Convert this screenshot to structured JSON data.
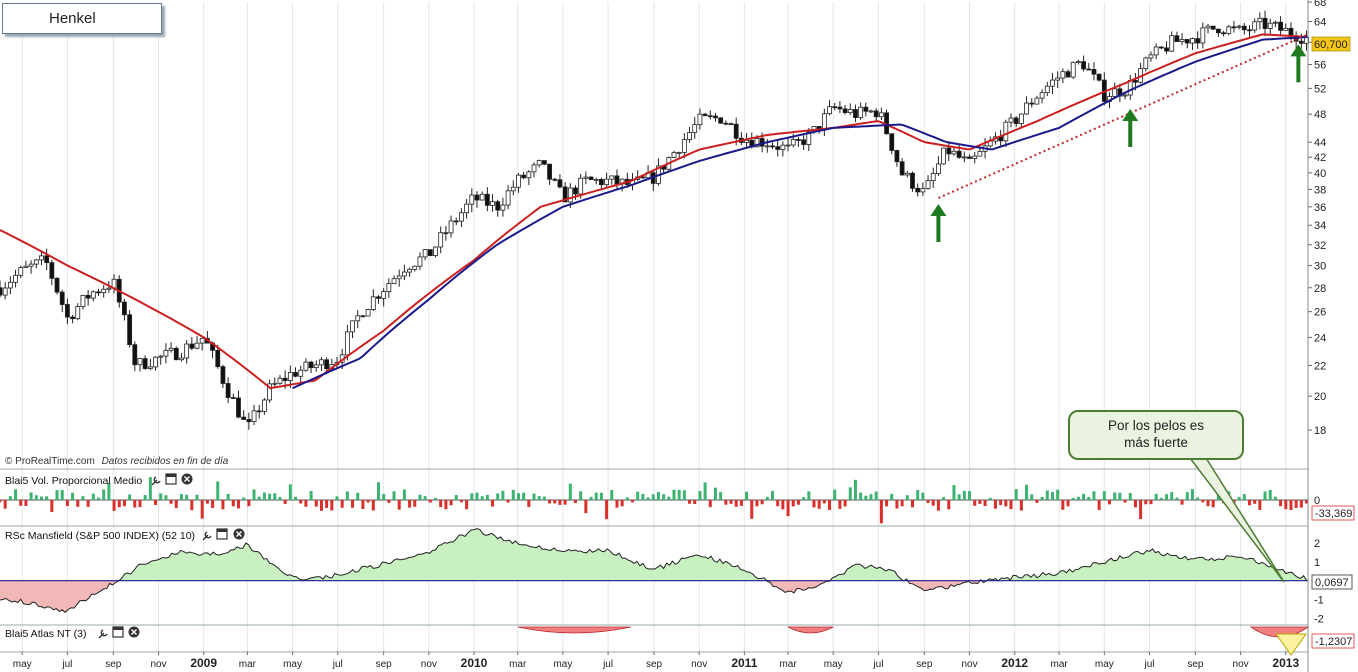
{
  "title": "Henkel",
  "credit": {
    "source": "© ProRealTime.com",
    "note": "Datos recibidos en fin de día"
  },
  "callout": {
    "line1": "Por los pelos es",
    "line2": "más fuerte"
  },
  "colors": {
    "up_candle": "#ffffff",
    "down_candle": "#111111",
    "ma_fast": "#cc1f1f",
    "ma_slow": "#1a1a8c",
    "trendline": "#c0282d",
    "arrow": "#1e7a1e",
    "vol_up": "#3cb371",
    "vol_down": "#d9302c",
    "rs_pos": "#c8f0c0",
    "rs_neg": "#f2b8b8",
    "price_badge": "#f5c518"
  },
  "chart_data": [
    {
      "type": "candlestick",
      "panel": "price",
      "title": "Henkel",
      "y_ticks": [
        18,
        20,
        22,
        24,
        26,
        28,
        30,
        32,
        34,
        36,
        38,
        40,
        42,
        44,
        48,
        52,
        56,
        60,
        64,
        68
      ],
      "ylim": [
        16,
        68
      ],
      "y_scale": "log",
      "last_price_label": "60,700",
      "x_ticks": [
        {
          "label": "may",
          "date": "2008-05"
        },
        {
          "label": "jul",
          "date": "2008-07"
        },
        {
          "label": "sep",
          "date": "2008-09"
        },
        {
          "label": "nov",
          "date": "2008-11"
        },
        {
          "label": "2009",
          "date": "2009-01",
          "year": true
        },
        {
          "label": "mar",
          "date": "2009-03"
        },
        {
          "label": "may",
          "date": "2009-05"
        },
        {
          "label": "jul",
          "date": "2009-07"
        },
        {
          "label": "sep",
          "date": "2009-09"
        },
        {
          "label": "nov",
          "date": "2009-11"
        },
        {
          "label": "2010",
          "date": "2010-01",
          "year": true
        },
        {
          "label": "mar",
          "date": "2010-03"
        },
        {
          "label": "may",
          "date": "2010-05"
        },
        {
          "label": "jul",
          "date": "2010-07"
        },
        {
          "label": "sep",
          "date": "2010-09"
        },
        {
          "label": "nov",
          "date": "2010-11"
        },
        {
          "label": "2011",
          "date": "2011-01",
          "year": true
        },
        {
          "label": "mar",
          "date": "2011-03"
        },
        {
          "label": "may",
          "date": "2011-05"
        },
        {
          "label": "jul",
          "date": "2011-07"
        },
        {
          "label": "sep",
          "date": "2011-09"
        },
        {
          "label": "nov",
          "date": "2011-11"
        },
        {
          "label": "2012",
          "date": "2012-01",
          "year": true
        },
        {
          "label": "mar",
          "date": "2012-03"
        },
        {
          "label": "may",
          "date": "2012-05"
        },
        {
          "label": "jul",
          "date": "2012-07"
        },
        {
          "label": "sep",
          "date": "2012-09"
        },
        {
          "label": "nov",
          "date": "2012-11"
        },
        {
          "label": "2013",
          "date": "2013-01",
          "year": true
        }
      ],
      "xlim": [
        "2008-04-01",
        "2013-01-31"
      ],
      "close_path": [
        [
          "2008-04-01",
          28.0
        ],
        [
          "2008-05-01",
          29.5
        ],
        [
          "2008-06-01",
          30.5
        ],
        [
          "2008-07-01",
          25.5
        ],
        [
          "2008-08-01",
          27.5
        ],
        [
          "2008-09-01",
          28.5
        ],
        [
          "2008-10-01",
          22.0
        ],
        [
          "2008-11-01",
          22.5
        ],
        [
          "2008-12-01",
          23.0
        ],
        [
          "2009-01-01",
          24.0
        ],
        [
          "2009-02-01",
          20.5
        ],
        [
          "2009-03-01",
          18.0
        ],
        [
          "2009-04-01",
          20.5
        ],
        [
          "2009-05-01",
          21.5
        ],
        [
          "2009-06-01",
          22.0
        ],
        [
          "2009-07-01",
          22.5
        ],
        [
          "2009-08-01",
          26.0
        ],
        [
          "2009-09-01",
          28.0
        ],
        [
          "2009-10-01",
          30.0
        ],
        [
          "2009-11-01",
          31.0
        ],
        [
          "2009-12-01",
          34.0
        ],
        [
          "2010-01-01",
          37.0
        ],
        [
          "2010-02-01",
          36.0
        ],
        [
          "2010-03-01",
          39.0
        ],
        [
          "2010-04-01",
          41.0
        ],
        [
          "2010-05-01",
          37.0
        ],
        [
          "2010-06-01",
          39.0
        ],
        [
          "2010-07-01",
          39.0
        ],
        [
          "2010-08-01",
          38.5
        ],
        [
          "2010-09-01",
          39.5
        ],
        [
          "2010-10-01",
          43.0
        ],
        [
          "2010-11-01",
          47.0
        ],
        [
          "2010-12-01",
          47.5
        ],
        [
          "2011-01-01",
          44.5
        ],
        [
          "2011-02-01",
          44.0
        ],
        [
          "2011-03-01",
          43.0
        ],
        [
          "2011-04-01",
          45.0
        ],
        [
          "2011-05-01",
          49.0
        ],
        [
          "2011-06-01",
          48.0
        ],
        [
          "2011-07-01",
          48.5
        ],
        [
          "2011-08-01",
          40.0
        ],
        [
          "2011-09-01",
          37.5
        ],
        [
          "2011-10-01",
          43.0
        ],
        [
          "2011-11-01",
          41.0
        ],
        [
          "2011-12-01",
          44.0
        ],
        [
          "2012-01-01",
          47.0
        ],
        [
          "2012-02-01",
          51.0
        ],
        [
          "2012-03-01",
          54.0
        ],
        [
          "2012-04-01",
          56.5
        ],
        [
          "2012-05-01",
          51.0
        ],
        [
          "2012-06-01",
          52.0
        ],
        [
          "2012-07-01",
          57.0
        ],
        [
          "2012-08-01",
          60.0
        ],
        [
          "2012-09-01",
          61.0
        ],
        [
          "2012-10-01",
          63.0
        ],
        [
          "2012-11-01",
          62.0
        ],
        [
          "2012-12-01",
          63.5
        ],
        [
          "2013-01-15",
          61.5
        ],
        [
          "2013-01-31",
          60.7
        ]
      ],
      "ma_fast_path": [
        [
          "2008-04-01",
          33.5
        ],
        [
          "2008-07-01",
          30.0
        ],
        [
          "2008-10-01",
          27.0
        ],
        [
          "2009-01-01",
          24.0
        ],
        [
          "2009-04-01",
          20.5
        ],
        [
          "2009-06-01",
          21.0
        ],
        [
          "2009-09-01",
          24.5
        ],
        [
          "2010-01-01",
          30.5
        ],
        [
          "2010-04-01",
          36.0
        ],
        [
          "2010-08-01",
          39.0
        ],
        [
          "2010-11-01",
          43.0
        ],
        [
          "2011-02-01",
          45.0
        ],
        [
          "2011-05-01",
          46.0
        ],
        [
          "2011-07-01",
          47.0
        ],
        [
          "2011-09-01",
          44.0
        ],
        [
          "2011-11-01",
          43.0
        ],
        [
          "2012-02-01",
          47.0
        ],
        [
          "2012-06-01",
          53.0
        ],
        [
          "2012-09-01",
          58.0
        ],
        [
          "2012-12-01",
          61.5
        ],
        [
          "2013-01-31",
          61.0
        ]
      ],
      "ma_slow_path": [
        [
          "2009-05-01",
          20.5
        ],
        [
          "2009-08-01",
          22.5
        ],
        [
          "2009-11-01",
          27.0
        ],
        [
          "2010-02-01",
          32.0
        ],
        [
          "2010-05-01",
          36.0
        ],
        [
          "2010-08-01",
          38.5
        ],
        [
          "2010-11-01",
          41.5
        ],
        [
          "2011-02-01",
          44.0
        ],
        [
          "2011-05-01",
          46.0
        ],
        [
          "2011-08-01",
          46.5
        ],
        [
          "2011-10-01",
          44.0
        ],
        [
          "2011-12-01",
          43.0
        ],
        [
          "2012-03-01",
          46.0
        ],
        [
          "2012-06-01",
          51.5
        ],
        [
          "2012-09-01",
          56.5
        ],
        [
          "2012-12-01",
          60.5
        ],
        [
          "2013-01-31",
          61.0
        ]
      ],
      "trendline": [
        [
          "2011-09-20",
          37.0
        ],
        [
          "2013-01-31",
          61.5
        ]
      ],
      "arrows": [
        {
          "date": "2011-09-20",
          "value": 33.5
        },
        {
          "date": "2012-06-05",
          "value": 45.0
        },
        {
          "date": "2013-01-18",
          "value": 55.0
        }
      ]
    },
    {
      "type": "bar",
      "panel": "volume",
      "label": "Blai5 Vol. Proporcional Medio",
      "y_ticks": [
        0
      ],
      "last_value_label": "-33,369"
    },
    {
      "type": "area",
      "panel": "rs",
      "label": "RSc Mansfield (S&P 500 INDEX) (52 10)",
      "y_ticks": [
        2,
        1,
        0,
        -1,
        -2
      ],
      "ylim": [
        -2.3,
        2.8
      ],
      "last_value_label": "0,0697",
      "path": [
        [
          "2008-04-01",
          -0.9
        ],
        [
          "2008-05-15",
          -1.2
        ],
        [
          "2008-07-01",
          -1.6
        ],
        [
          "2008-08-01",
          -0.8
        ],
        [
          "2008-09-15",
          0.2
        ],
        [
          "2008-10-15",
          1.0
        ],
        [
          "2008-12-01",
          1.5
        ],
        [
          "2009-01-15",
          1.4
        ],
        [
          "2009-03-01",
          1.9
        ],
        [
          "2009-04-15",
          0.5
        ],
        [
          "2009-05-15",
          0.1
        ],
        [
          "2009-07-01",
          0.3
        ],
        [
          "2009-09-01",
          0.9
        ],
        [
          "2009-11-01",
          1.5
        ],
        [
          "2010-01-01",
          2.7
        ],
        [
          "2010-03-01",
          2.0
        ],
        [
          "2010-05-01",
          1.6
        ],
        [
          "2010-07-01",
          1.6
        ],
        [
          "2010-09-01",
          0.6
        ],
        [
          "2010-11-01",
          1.4
        ],
        [
          "2011-01-01",
          0.6
        ],
        [
          "2011-03-01",
          -0.6
        ],
        [
          "2011-04-15",
          -0.2
        ],
        [
          "2011-06-01",
          0.8
        ],
        [
          "2011-07-15",
          0.6
        ],
        [
          "2011-09-01",
          -0.6
        ],
        [
          "2011-10-15",
          -0.2
        ],
        [
          "2011-12-01",
          0.05
        ],
        [
          "2012-03-01",
          0.4
        ],
        [
          "2012-05-01",
          1.0
        ],
        [
          "2012-07-01",
          1.6
        ],
        [
          "2012-09-01",
          1.1
        ],
        [
          "2012-11-01",
          1.3
        ],
        [
          "2013-01-31",
          0.07
        ]
      ]
    },
    {
      "type": "area",
      "panel": "atlas",
      "label": "Blai5 Atlas NT (3)",
      "last_value_label": "-1,2307"
    }
  ]
}
